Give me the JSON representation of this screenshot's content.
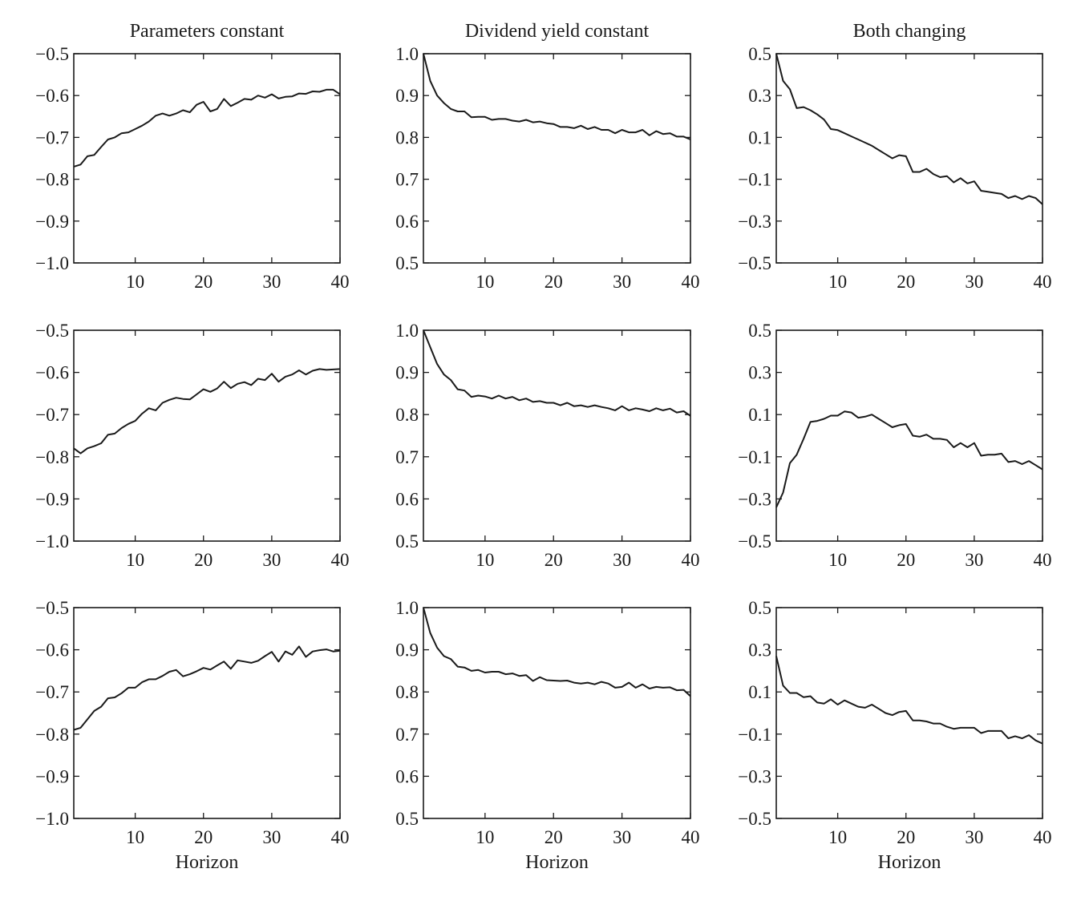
{
  "chart_data": [
    {
      "type": "line",
      "title": "Parameters constant",
      "xlabel": "",
      "ylabel": "",
      "xlim": [
        1,
        40
      ],
      "ylim": [
        -1.0,
        -0.5
      ],
      "xticks": [
        "10",
        "20",
        "30",
        "40"
      ],
      "yticks": [
        "−1.0",
        "−0.9",
        "−0.8",
        "−0.7",
        "−0.6",
        "−0.5"
      ],
      "x": [
        1,
        2,
        3,
        4,
        5,
        6,
        7,
        8,
        9,
        10,
        11,
        12,
        13,
        14,
        15,
        16,
        17,
        18,
        19,
        20,
        21,
        22,
        23,
        24,
        25,
        26,
        27,
        28,
        29,
        30,
        31,
        32,
        33,
        34,
        35,
        36,
        37,
        38,
        39,
        40
      ],
      "values": [
        -0.77,
        -0.765,
        -0.745,
        -0.742,
        -0.723,
        -0.705,
        -0.7,
        -0.69,
        -0.688,
        -0.68,
        -0.672,
        -0.662,
        -0.648,
        -0.643,
        -0.648,
        -0.643,
        -0.635,
        -0.64,
        -0.622,
        -0.615,
        -0.638,
        -0.632,
        -0.608,
        -0.625,
        -0.617,
        -0.608,
        -0.61,
        -0.6,
        -0.605,
        -0.597,
        -0.607,
        -0.603,
        -0.602,
        -0.595,
        -0.596,
        -0.59,
        -0.591,
        -0.586,
        -0.586,
        -0.597
      ]
    },
    {
      "type": "line",
      "title": "Dividend yield constant",
      "xlabel": "",
      "ylabel": "",
      "xlim": [
        1,
        40
      ],
      "ylim": [
        0.5,
        1.0
      ],
      "xticks": [
        "10",
        "20",
        "30",
        "40"
      ],
      "yticks": [
        "0.5",
        "0.6",
        "0.7",
        "0.8",
        "0.9",
        "1.0"
      ],
      "x": [
        1,
        2,
        3,
        4,
        5,
        6,
        7,
        8,
        9,
        10,
        11,
        12,
        13,
        14,
        15,
        16,
        17,
        18,
        19,
        20,
        21,
        22,
        23,
        24,
        25,
        26,
        27,
        28,
        29,
        30,
        31,
        32,
        33,
        34,
        35,
        36,
        37,
        38,
        39,
        40
      ],
      "values": [
        1.0,
        0.935,
        0.9,
        0.882,
        0.868,
        0.862,
        0.862,
        0.848,
        0.849,
        0.849,
        0.842,
        0.844,
        0.844,
        0.84,
        0.838,
        0.842,
        0.836,
        0.838,
        0.834,
        0.832,
        0.825,
        0.825,
        0.822,
        0.828,
        0.82,
        0.825,
        0.818,
        0.818,
        0.81,
        0.818,
        0.812,
        0.812,
        0.818,
        0.805,
        0.815,
        0.808,
        0.81,
        0.802,
        0.802,
        0.795
      ]
    },
    {
      "type": "line",
      "title": "Both changing",
      "xlabel": "",
      "ylabel": "",
      "xlim": [
        1,
        40
      ],
      "ylim": [
        -0.5,
        0.5
      ],
      "xticks": [
        "10",
        "20",
        "30",
        "40"
      ],
      "yticks": [
        "−0.5",
        "−0.3",
        "−0.1",
        "0.1",
        "0.3",
        "0.5"
      ],
      "x": [
        1,
        2,
        3,
        4,
        5,
        6,
        7,
        8,
        9,
        10,
        11,
        12,
        13,
        14,
        15,
        16,
        17,
        18,
        19,
        20,
        21,
        22,
        23,
        24,
        25,
        26,
        27,
        28,
        29,
        30,
        31,
        32,
        33,
        34,
        35,
        36,
        37,
        38,
        39,
        40
      ],
      "values": [
        0.5,
        0.37,
        0.33,
        0.24,
        0.245,
        0.23,
        0.21,
        0.185,
        0.14,
        0.135,
        0.12,
        0.105,
        0.09,
        0.075,
        0.06,
        0.04,
        0.02,
        0.0,
        0.015,
        0.01,
        -0.065,
        -0.065,
        -0.05,
        -0.075,
        -0.09,
        -0.085,
        -0.115,
        -0.095,
        -0.12,
        -0.11,
        -0.155,
        -0.16,
        -0.165,
        -0.17,
        -0.19,
        -0.18,
        -0.195,
        -0.18,
        -0.19,
        -0.22
      ]
    },
    {
      "type": "line",
      "title": "",
      "xlabel": "",
      "ylabel": "",
      "xlim": [
        1,
        40
      ],
      "ylim": [
        -1.0,
        -0.5
      ],
      "xticks": [
        "10",
        "20",
        "30",
        "40"
      ],
      "yticks": [
        "−1.0",
        "−0.9",
        "−0.8",
        "−0.7",
        "−0.6",
        "−0.5"
      ],
      "x": [
        1,
        2,
        3,
        4,
        5,
        6,
        7,
        8,
        9,
        10,
        11,
        12,
        13,
        14,
        15,
        16,
        17,
        18,
        19,
        20,
        21,
        22,
        23,
        24,
        25,
        26,
        27,
        28,
        29,
        30,
        31,
        32,
        33,
        34,
        35,
        36,
        37,
        38,
        39,
        40
      ],
      "values": [
        -0.78,
        -0.792,
        -0.78,
        -0.775,
        -0.768,
        -0.748,
        -0.745,
        -0.732,
        -0.722,
        -0.715,
        -0.698,
        -0.685,
        -0.69,
        -0.672,
        -0.665,
        -0.66,
        -0.663,
        -0.664,
        -0.652,
        -0.64,
        -0.646,
        -0.638,
        -0.622,
        -0.637,
        -0.627,
        -0.623,
        -0.63,
        -0.615,
        -0.618,
        -0.603,
        -0.622,
        -0.61,
        -0.605,
        -0.595,
        -0.605,
        -0.596,
        -0.592,
        -0.594,
        -0.593,
        -0.592
      ]
    },
    {
      "type": "line",
      "title": "",
      "xlabel": "",
      "ylabel": "",
      "xlim": [
        1,
        40
      ],
      "ylim": [
        0.5,
        1.0
      ],
      "xticks": [
        "10",
        "20",
        "30",
        "40"
      ],
      "yticks": [
        "0.5",
        "0.6",
        "0.7",
        "0.8",
        "0.9",
        "1.0"
      ],
      "x": [
        1,
        2,
        3,
        4,
        5,
        6,
        7,
        8,
        9,
        10,
        11,
        12,
        13,
        14,
        15,
        16,
        17,
        18,
        19,
        20,
        21,
        22,
        23,
        24,
        25,
        26,
        27,
        28,
        29,
        30,
        31,
        32,
        33,
        34,
        35,
        36,
        37,
        38,
        39,
        40
      ],
      "values": [
        1.0,
        0.96,
        0.92,
        0.895,
        0.882,
        0.86,
        0.857,
        0.842,
        0.845,
        0.843,
        0.838,
        0.845,
        0.838,
        0.842,
        0.834,
        0.838,
        0.83,
        0.832,
        0.828,
        0.828,
        0.822,
        0.828,
        0.82,
        0.822,
        0.818,
        0.822,
        0.818,
        0.815,
        0.81,
        0.82,
        0.81,
        0.815,
        0.812,
        0.808,
        0.815,
        0.81,
        0.814,
        0.805,
        0.808,
        0.797
      ]
    },
    {
      "type": "line",
      "title": "",
      "xlabel": "",
      "ylabel": "",
      "xlim": [
        1,
        40
      ],
      "ylim": [
        -0.5,
        0.5
      ],
      "xticks": [
        "10",
        "20",
        "30",
        "40"
      ],
      "yticks": [
        "−0.5",
        "−0.3",
        "−0.1",
        "0.1",
        "0.3",
        "0.5"
      ],
      "x": [
        1,
        2,
        3,
        4,
        5,
        6,
        7,
        8,
        9,
        10,
        11,
        12,
        13,
        14,
        15,
        16,
        17,
        18,
        19,
        20,
        21,
        22,
        23,
        24,
        25,
        26,
        27,
        28,
        29,
        30,
        31,
        32,
        33,
        34,
        35,
        36,
        37,
        38,
        39,
        40
      ],
      "values": [
        -0.34,
        -0.27,
        -0.13,
        -0.09,
        -0.015,
        0.065,
        0.07,
        0.08,
        0.095,
        0.095,
        0.115,
        0.11,
        0.085,
        0.09,
        0.1,
        0.08,
        0.06,
        0.04,
        0.05,
        0.055,
        0.0,
        -0.005,
        0.005,
        -0.015,
        -0.015,
        -0.02,
        -0.055,
        -0.035,
        -0.055,
        -0.035,
        -0.095,
        -0.09,
        -0.09,
        -0.085,
        -0.125,
        -0.12,
        -0.135,
        -0.12,
        -0.14,
        -0.16
      ]
    },
    {
      "type": "line",
      "title": "",
      "xlabel": "Horizon",
      "ylabel": "",
      "xlim": [
        1,
        40
      ],
      "ylim": [
        -1.0,
        -0.5
      ],
      "xticks": [
        "10",
        "20",
        "30",
        "40"
      ],
      "yticks": [
        "−1.0",
        "−0.9",
        "−0.8",
        "−0.7",
        "−0.6",
        "−0.5"
      ],
      "x": [
        1,
        2,
        3,
        4,
        5,
        6,
        7,
        8,
        9,
        10,
        11,
        12,
        13,
        14,
        15,
        16,
        17,
        18,
        19,
        20,
        21,
        22,
        23,
        24,
        25,
        26,
        27,
        28,
        29,
        30,
        31,
        32,
        33,
        34,
        35,
        36,
        37,
        38,
        39,
        40
      ],
      "values": [
        -0.79,
        -0.785,
        -0.765,
        -0.745,
        -0.735,
        -0.715,
        -0.713,
        -0.703,
        -0.69,
        -0.69,
        -0.677,
        -0.67,
        -0.67,
        -0.662,
        -0.652,
        -0.648,
        -0.663,
        -0.658,
        -0.651,
        -0.643,
        -0.647,
        -0.637,
        -0.628,
        -0.645,
        -0.625,
        -0.628,
        -0.631,
        -0.626,
        -0.615,
        -0.605,
        -0.628,
        -0.604,
        -0.612,
        -0.592,
        -0.617,
        -0.604,
        -0.601,
        -0.599,
        -0.604,
        -0.602
      ]
    },
    {
      "type": "line",
      "title": "",
      "xlabel": "Horizon",
      "ylabel": "",
      "xlim": [
        1,
        40
      ],
      "ylim": [
        0.5,
        1.0
      ],
      "xticks": [
        "10",
        "20",
        "30",
        "40"
      ],
      "yticks": [
        "0.5",
        "0.6",
        "0.7",
        "0.8",
        "0.9",
        "1.0"
      ],
      "x": [
        1,
        2,
        3,
        4,
        5,
        6,
        7,
        8,
        9,
        10,
        11,
        12,
        13,
        14,
        15,
        16,
        17,
        18,
        19,
        20,
        21,
        22,
        23,
        24,
        25,
        26,
        27,
        28,
        29,
        30,
        31,
        32,
        33,
        34,
        35,
        36,
        37,
        38,
        39,
        40
      ],
      "values": [
        1.0,
        0.94,
        0.905,
        0.885,
        0.878,
        0.86,
        0.858,
        0.85,
        0.852,
        0.846,
        0.848,
        0.848,
        0.842,
        0.844,
        0.838,
        0.84,
        0.826,
        0.835,
        0.828,
        0.827,
        0.826,
        0.827,
        0.822,
        0.82,
        0.822,
        0.818,
        0.824,
        0.82,
        0.81,
        0.812,
        0.822,
        0.81,
        0.818,
        0.808,
        0.812,
        0.81,
        0.811,
        0.804,
        0.805,
        0.79
      ]
    },
    {
      "type": "line",
      "title": "",
      "xlabel": "Horizon",
      "ylabel": "",
      "xlim": [
        1,
        40
      ],
      "ylim": [
        -0.5,
        0.5
      ],
      "xticks": [
        "10",
        "20",
        "30",
        "40"
      ],
      "yticks": [
        "−0.5",
        "−0.3",
        "−0.1",
        "0.1",
        "0.3",
        "0.5"
      ],
      "x": [
        1,
        2,
        3,
        4,
        5,
        6,
        7,
        8,
        9,
        10,
        11,
        12,
        13,
        14,
        15,
        16,
        17,
        18,
        19,
        20,
        21,
        22,
        23,
        24,
        25,
        26,
        27,
        28,
        29,
        30,
        31,
        32,
        33,
        34,
        35,
        36,
        37,
        38,
        39,
        40
      ],
      "values": [
        0.27,
        0.13,
        0.095,
        0.095,
        0.075,
        0.08,
        0.05,
        0.045,
        0.065,
        0.04,
        0.06,
        0.045,
        0.03,
        0.025,
        0.04,
        0.02,
        0.0,
        -0.01,
        0.005,
        0.01,
        -0.035,
        -0.035,
        -0.04,
        -0.05,
        -0.05,
        -0.065,
        -0.075,
        -0.07,
        -0.07,
        -0.07,
        -0.095,
        -0.085,
        -0.085,
        -0.085,
        -0.12,
        -0.11,
        -0.12,
        -0.105,
        -0.13,
        -0.145
      ]
    }
  ]
}
